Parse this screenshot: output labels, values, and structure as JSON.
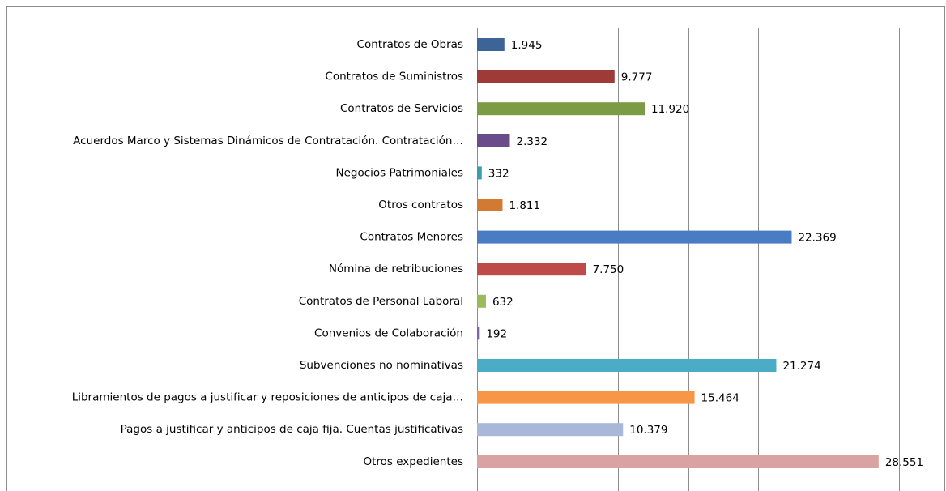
{
  "chart_data": {
    "type": "hbar",
    "categories": [
      "Contratos de Obras",
      "Contratos de Suministros",
      "Contratos de Servicios",
      "Acuerdos Marco y Sistemas Dinámicos de Contratación. Contratación…",
      "Negocios Patrimoniales",
      "Otros contratos",
      "Contratos Menores",
      "Nómina de retribuciones",
      "Contratos de Personal Laboral",
      "Convenios de Colaboración",
      "Subvenciones no nominativas",
      "Libramientos de pagos a justificar y  reposiciones de anticipos de caja…",
      "Pagos a justificar y anticipos de caja fija. Cuentas justificativas",
      "Otros expedientes"
    ],
    "values": [
      1945,
      9777,
      11920,
      2332,
      332,
      1811,
      22369,
      7750,
      632,
      192,
      21274,
      15464,
      10379,
      28551
    ],
    "value_labels": [
      "1.945",
      "9.777",
      "11.920",
      "2.332",
      "332",
      "1.811",
      "22.369",
      "7.750",
      "632",
      "192",
      "21.274",
      "15.464",
      "10.379",
      "28.551"
    ],
    "colors": [
      "#3c6496",
      "#9e3b38",
      "#7d9a44",
      "#6a4c8b",
      "#3d9ab1",
      "#d37a32",
      "#4a7cc4",
      "#be4b48",
      "#9bbb59",
      "#8064a2",
      "#4bacc6",
      "#f79646",
      "#a9b8d8",
      "#d9a3a3"
    ],
    "xlim": [
      0,
      30000
    ],
    "xticks": [
      0,
      5000,
      10000,
      15000,
      20000,
      25000,
      30000
    ],
    "grid": true
  }
}
